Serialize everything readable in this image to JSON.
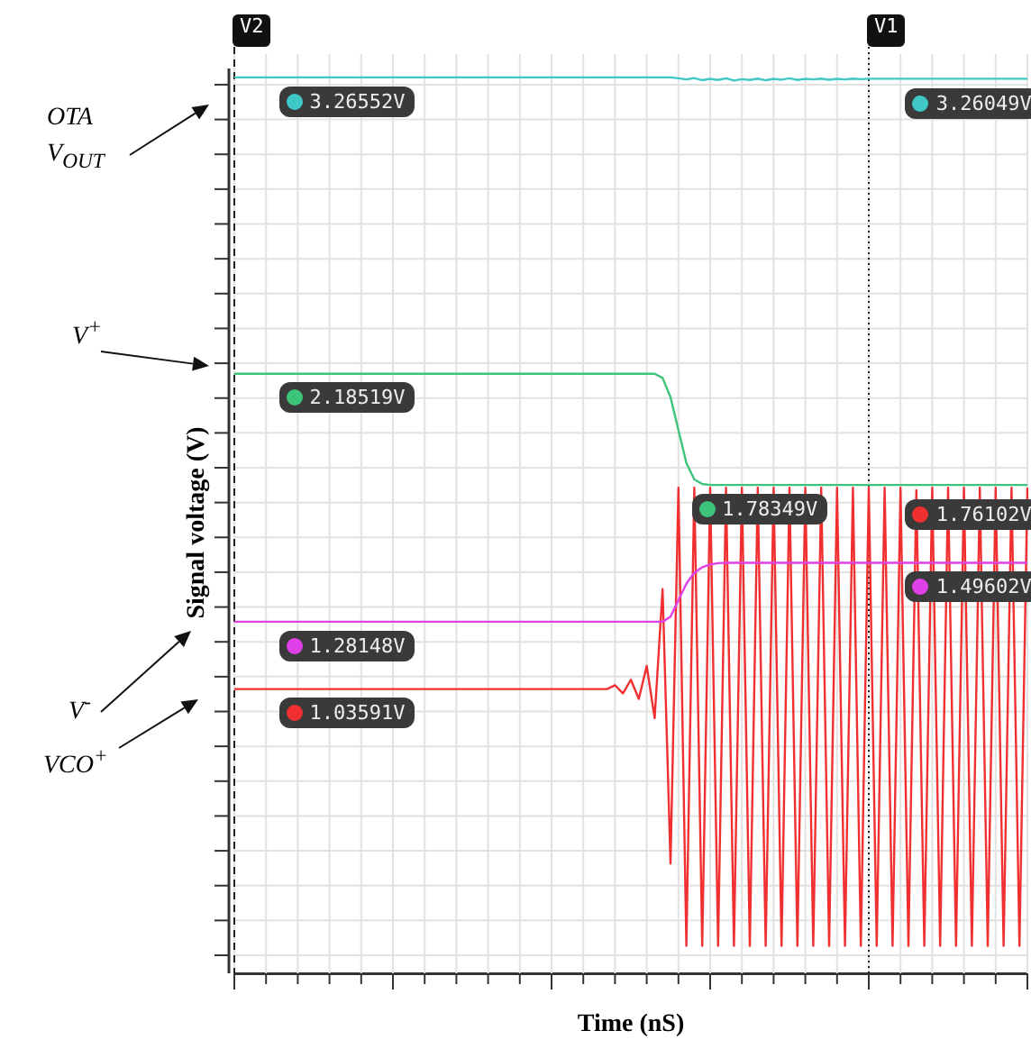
{
  "chart_data": {
    "type": "line",
    "xlabel": "Time (nS)",
    "ylabel": "Signal voltage (V)",
    "categories": [
      null,
      null,
      null,
      null,
      null,
      null,
      null,
      null,
      null,
      null,
      null,
      null,
      null,
      null,
      null,
      null,
      null,
      null,
      null,
      null,
      null,
      null,
      null,
      null,
      null,
      null,
      null,
      null,
      null,
      null,
      null,
      null,
      null,
      null,
      null,
      null,
      null,
      null,
      null,
      null,
      null,
      null,
      null,
      null,
      null,
      null,
      null,
      null,
      null,
      null,
      null,
      null,
      null,
      null,
      null,
      null,
      null,
      null,
      null,
      null,
      null,
      null,
      null,
      null,
      null,
      null,
      null,
      null,
      null,
      null,
      null,
      null,
      null,
      null,
      null,
      null,
      null,
      null,
      null,
      null,
      null,
      null,
      null,
      null,
      null,
      null,
      null,
      null,
      null,
      null,
      null,
      null,
      null,
      null,
      null,
      null,
      null,
      null,
      null,
      null,
      null
    ],
    "series": [
      {
        "color": "#40c8c8",
        "values": [
          3.26552,
          3.26552,
          3.26552,
          3.26552,
          3.26552,
          3.26552,
          3.26552,
          3.26552,
          3.26552,
          3.26552,
          3.26552,
          3.26552,
          3.26552,
          3.26552,
          3.26552,
          3.26552,
          3.26552,
          3.26552,
          3.26552,
          3.26552,
          3.26552,
          3.26552,
          3.26552,
          3.26552,
          3.26552,
          3.26552,
          3.26552,
          3.26552,
          3.26552,
          3.26552,
          3.26552,
          3.26552,
          3.26552,
          3.26552,
          3.26552,
          3.26552,
          3.26552,
          3.26552,
          3.26552,
          3.26552,
          3.26552,
          3.26552,
          3.26552,
          3.26552,
          3.26552,
          3.26552,
          3.26552,
          3.26552,
          3.26552,
          3.26552,
          3.26552,
          3.26552,
          3.26552,
          3.26552,
          3.26552,
          3.26552,
          3.262,
          3.258,
          3.263,
          3.255,
          3.26,
          3.256,
          3.262,
          3.254,
          3.259,
          3.256,
          3.261,
          3.255,
          3.26,
          3.257,
          3.262,
          3.256,
          3.26,
          3.258,
          3.261,
          3.257,
          3.26,
          3.258,
          3.261,
          3.259,
          3.26049,
          3.26049,
          3.26049,
          3.26049,
          3.26049,
          3.26049,
          3.26049,
          3.26049,
          3.26049,
          3.26049,
          3.26049,
          3.26049,
          3.26049,
          3.26049,
          3.26049,
          3.26049,
          3.26049,
          3.26049,
          3.26049,
          3.26049,
          3.26049
        ],
        "value_labels": [
          null,
          null,
          null,
          null,
          null,
          null,
          null,
          "3.26552V",
          null,
          null,
          null,
          null,
          null,
          null,
          null,
          null,
          null,
          null,
          null,
          null,
          null,
          null,
          null,
          null,
          null,
          null,
          null,
          null,
          null,
          null,
          null,
          null,
          null,
          null,
          null,
          null,
          null,
          null,
          null,
          null,
          null,
          null,
          null,
          null,
          null,
          null,
          null,
          null,
          null,
          null,
          null,
          null,
          null,
          null,
          null,
          null,
          null,
          null,
          null,
          null,
          null,
          null,
          null,
          null,
          null,
          null,
          null,
          null,
          null,
          null,
          null,
          null,
          null,
          null,
          null,
          null,
          null,
          null,
          null,
          null,
          null,
          null,
          null,
          null,
          null,
          null,
          "3.26049V",
          null,
          null,
          null,
          null,
          null,
          null,
          null,
          null,
          null,
          null,
          null,
          null,
          null,
          null
        ]
      },
      {
        "color": "#3cc47a",
        "values": [
          2.18519,
          2.18519,
          2.18519,
          2.18519,
          2.18519,
          2.18519,
          2.18519,
          2.18519,
          2.18519,
          2.18519,
          2.18519,
          2.18519,
          2.18519,
          2.18519,
          2.18519,
          2.18519,
          2.18519,
          2.18519,
          2.18519,
          2.18519,
          2.18519,
          2.18519,
          2.18519,
          2.18519,
          2.18519,
          2.18519,
          2.18519,
          2.18519,
          2.18519,
          2.18519,
          2.18519,
          2.18519,
          2.18519,
          2.18519,
          2.18519,
          2.18519,
          2.18519,
          2.18519,
          2.18519,
          2.18519,
          2.18519,
          2.18519,
          2.18519,
          2.18519,
          2.18519,
          2.18519,
          2.18519,
          2.18519,
          2.18519,
          2.18519,
          2.18519,
          2.18519,
          2.18519,
          2.18519,
          2.17,
          2.1,
          1.98,
          1.86,
          1.8,
          1.78349,
          1.78,
          1.78,
          1.78,
          1.78,
          1.78,
          1.78,
          1.78,
          1.78,
          1.78,
          1.78,
          1.78,
          1.78,
          1.78,
          1.78,
          1.78,
          1.78,
          1.78,
          1.78,
          1.78,
          1.78,
          1.78,
          1.78,
          1.78,
          1.78,
          1.78,
          1.78,
          1.78,
          1.78,
          1.78,
          1.78,
          1.78,
          1.78,
          1.78,
          1.78,
          1.78,
          1.78,
          1.78,
          1.78,
          1.78,
          1.78,
          1.78
        ],
        "value_labels": [
          null,
          null,
          null,
          null,
          null,
          null,
          null,
          "2.18519V",
          null,
          null,
          null,
          null,
          null,
          null,
          null,
          null,
          null,
          null,
          null,
          null,
          null,
          null,
          null,
          null,
          null,
          null,
          null,
          null,
          null,
          null,
          null,
          null,
          null,
          null,
          null,
          null,
          null,
          null,
          null,
          null,
          null,
          null,
          null,
          null,
          null,
          null,
          null,
          null,
          null,
          null,
          null,
          null,
          null,
          null,
          null,
          null,
          null,
          null,
          null,
          "1.78349V",
          null,
          null,
          null,
          null,
          null,
          null,
          null,
          null,
          null,
          null,
          null,
          null,
          null,
          null,
          null,
          null,
          null,
          null,
          null,
          null,
          null,
          null,
          null,
          null,
          null,
          null,
          null,
          null,
          null,
          null,
          null,
          null,
          null,
          null,
          null,
          null,
          null,
          null,
          null,
          null,
          null
        ]
      },
      {
        "color": "#e040e8",
        "values": [
          1.28148,
          1.28148,
          1.28148,
          1.28148,
          1.28148,
          1.28148,
          1.28148,
          1.28148,
          1.28148,
          1.28148,
          1.28148,
          1.28148,
          1.28148,
          1.28148,
          1.28148,
          1.28148,
          1.28148,
          1.28148,
          1.28148,
          1.28148,
          1.28148,
          1.28148,
          1.28148,
          1.28148,
          1.28148,
          1.28148,
          1.28148,
          1.28148,
          1.28148,
          1.28148,
          1.28148,
          1.28148,
          1.28148,
          1.28148,
          1.28148,
          1.28148,
          1.28148,
          1.28148,
          1.28148,
          1.28148,
          1.28148,
          1.28148,
          1.28148,
          1.28148,
          1.28148,
          1.28148,
          1.28148,
          1.28148,
          1.28148,
          1.28148,
          1.28148,
          1.28148,
          1.28148,
          1.28148,
          1.28148,
          1.3,
          1.36,
          1.42,
          1.46,
          1.48,
          1.49,
          1.495,
          1.49602,
          1.49602,
          1.49602,
          1.49602,
          1.49602,
          1.49602,
          1.49602,
          1.49602,
          1.49602,
          1.49602,
          1.49602,
          1.49602,
          1.49602,
          1.49602,
          1.49602,
          1.49602,
          1.49602,
          1.49602,
          1.49602,
          1.49602,
          1.49602,
          1.49602,
          1.49602,
          1.49602,
          1.49602,
          1.49602,
          1.49602,
          1.49602,
          1.49602,
          1.49602,
          1.49602,
          1.49602,
          1.49602,
          1.49602,
          1.49602,
          1.49602,
          1.49602,
          1.49602,
          1.49602
        ],
        "value_labels": [
          null,
          null,
          null,
          null,
          null,
          null,
          null,
          "1.28148V",
          null,
          null,
          null,
          null,
          null,
          null,
          null,
          null,
          null,
          null,
          null,
          null,
          null,
          null,
          null,
          null,
          null,
          null,
          null,
          null,
          null,
          null,
          null,
          null,
          null,
          null,
          null,
          null,
          null,
          null,
          null,
          null,
          null,
          null,
          null,
          null,
          null,
          null,
          null,
          null,
          null,
          null,
          null,
          null,
          null,
          null,
          null,
          null,
          null,
          null,
          null,
          null,
          null,
          null,
          null,
          null,
          null,
          null,
          null,
          null,
          null,
          null,
          null,
          null,
          null,
          null,
          null,
          null,
          null,
          null,
          null,
          null,
          null,
          null,
          null,
          null,
          null,
          null,
          "1.49602V",
          null,
          null,
          null,
          null,
          null,
          null,
          null,
          null,
          null,
          null,
          null,
          null,
          null,
          null
        ]
      },
      {
        "color": "#f03030",
        "values": [
          1.03591,
          1.03591,
          1.03591,
          1.03591,
          1.03591,
          1.03591,
          1.03591,
          1.03591,
          1.03591,
          1.03591,
          1.03591,
          1.03591,
          1.03591,
          1.03591,
          1.03591,
          1.03591,
          1.03591,
          1.03591,
          1.03591,
          1.03591,
          1.03591,
          1.03591,
          1.03591,
          1.03591,
          1.03591,
          1.03591,
          1.03591,
          1.03591,
          1.03591,
          1.03591,
          1.03591,
          1.03591,
          1.03591,
          1.03591,
          1.03591,
          1.03591,
          1.03591,
          1.03591,
          1.03591,
          1.03591,
          1.03591,
          1.03591,
          1.03591,
          1.03591,
          1.03591,
          1.03591,
          1.03591,
          1.03591,
          1.05,
          1.02,
          1.07,
          1.0,
          1.12,
          0.93,
          1.4,
          0.4,
          1.77,
          0.1,
          1.77,
          0.1,
          1.77,
          0.1,
          1.77,
          0.1,
          1.77,
          0.1,
          1.77,
          0.1,
          1.77,
          0.1,
          1.77,
          0.1,
          1.77,
          0.1,
          1.77,
          0.1,
          1.77,
          0.1,
          1.77,
          0.1,
          1.77,
          0.1,
          1.77,
          0.1,
          1.77,
          0.1,
          1.76102,
          0.1,
          1.77,
          0.1,
          1.77,
          0.1,
          1.77,
          0.1,
          1.77,
          0.1,
          1.77,
          0.1,
          1.77,
          0.1,
          1.77
        ],
        "value_labels": [
          null,
          null,
          null,
          null,
          null,
          null,
          null,
          "1.03591V",
          null,
          null,
          null,
          null,
          null,
          null,
          null,
          null,
          null,
          null,
          null,
          null,
          null,
          null,
          null,
          null,
          null,
          null,
          null,
          null,
          null,
          null,
          null,
          null,
          null,
          null,
          null,
          null,
          null,
          null,
          null,
          null,
          null,
          null,
          null,
          null,
          null,
          null,
          null,
          null,
          null,
          null,
          null,
          null,
          null,
          null,
          null,
          null,
          null,
          null,
          null,
          null,
          null,
          null,
          null,
          null,
          null,
          null,
          null,
          null,
          null,
          null,
          null,
          null,
          null,
          null,
          null,
          null,
          null,
          null,
          null,
          null,
          null,
          null,
          null,
          null,
          null,
          null,
          "1.76102V",
          null,
          null,
          null,
          null,
          null,
          null,
          null,
          null,
          null,
          null,
          null,
          null,
          null,
          null
        ]
      }
    ],
    "tick_labels": false,
    "grid": true,
    "legend": false,
    "marker": "none",
    "line_style": "solid",
    "annotations": [
      "OTA V$_{OUT}$",
      "V$^{+}$",
      "V$^{-}$",
      "VCO$^{+}$",
      "V2",
      "V1"
    ]
  }
}
